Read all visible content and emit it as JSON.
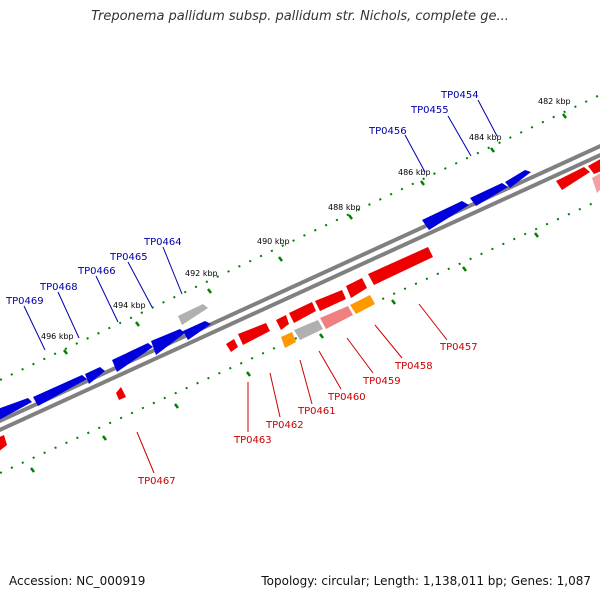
{
  "title": "Treponema pallidum subsp. pallidum str. Nichols, complete ge...",
  "accession": "Accession: NC_000919",
  "summary": "Topology: circular; Length: 1,138,011 bp; Genes: 1,087",
  "kbp_labels": [
    "482 kbp",
    "484 kbp",
    "486 kbp",
    "488 kbp",
    "490 kbp",
    "492 kbp",
    "494 kbp",
    "496 kbp"
  ],
  "forward_genes": [
    "TP0454",
    "TP0455",
    "TP0456",
    "TP0464",
    "TP0465",
    "TP0466",
    "TP0468",
    "TP0469"
  ],
  "reverse_genes": [
    "TP0457",
    "TP0458",
    "TP0459",
    "TP0460",
    "TP0461",
    "TP0462",
    "TP0463",
    "TP0467"
  ],
  "colors": {
    "forward": "#0000dd",
    "forward_label": "#0000aa",
    "reverse": "#ee0000",
    "reverse_label": "#cc0000",
    "grey_gene": "#b0b0b0",
    "pink_gene": "#f08080",
    "orange_gene": "#ff9900",
    "backbone": "#808080",
    "ticks": "#008000"
  }
}
